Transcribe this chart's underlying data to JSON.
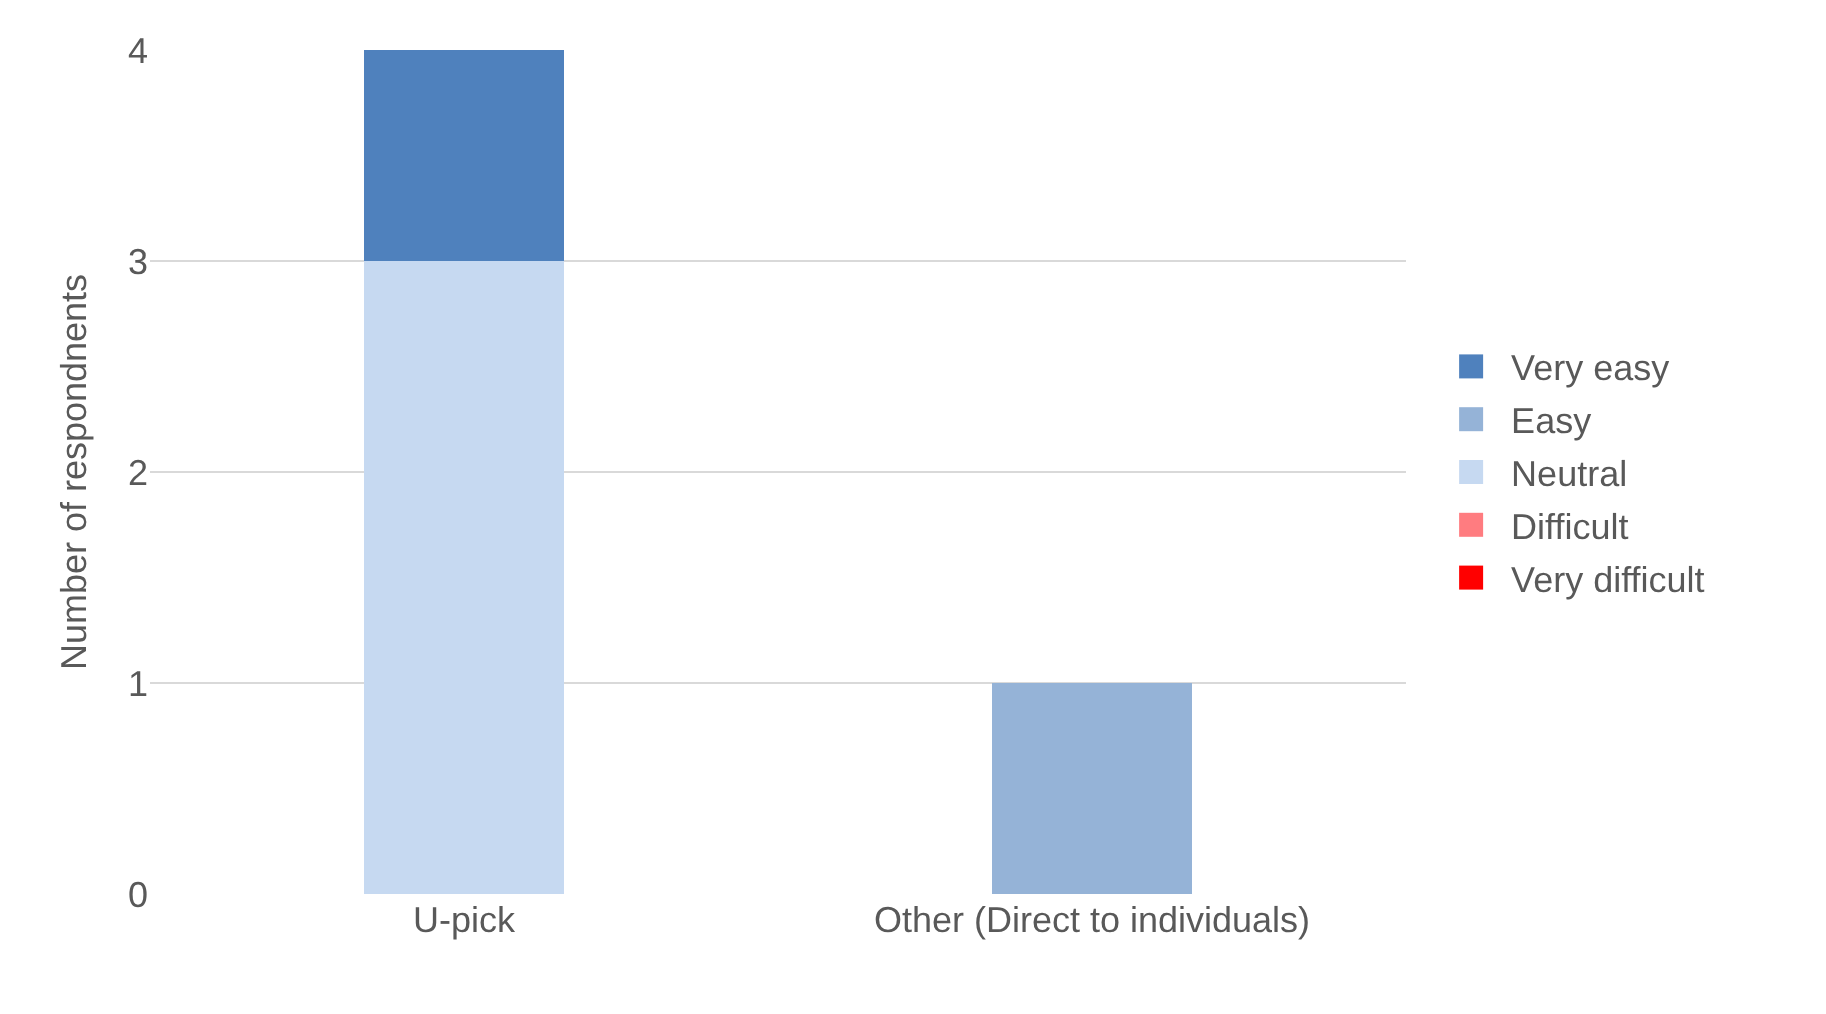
{
  "chart_data": {
    "type": "bar",
    "stacked": true,
    "ylabel": "Number of respondnents",
    "categories": [
      "U-pick",
      "Other (Direct to individuals)"
    ],
    "series": [
      {
        "name": "Very difficult",
        "color": "#ff0000",
        "values": [
          0,
          0
        ]
      },
      {
        "name": "Difficult",
        "color": "#ff7c80",
        "values": [
          0,
          0
        ]
      },
      {
        "name": "Neutral",
        "color": "#c6d9f1",
        "values": [
          3,
          0
        ]
      },
      {
        "name": "Easy",
        "color": "#95b3d7",
        "values": [
          0,
          1
        ]
      },
      {
        "name": "Very easy",
        "color": "#4f81bd",
        "values": [
          1,
          0
        ]
      }
    ],
    "ylim": [
      0,
      4
    ],
    "yticks": [
      0,
      1,
      2,
      3,
      4
    ],
    "grid": "y",
    "legend": "right"
  }
}
